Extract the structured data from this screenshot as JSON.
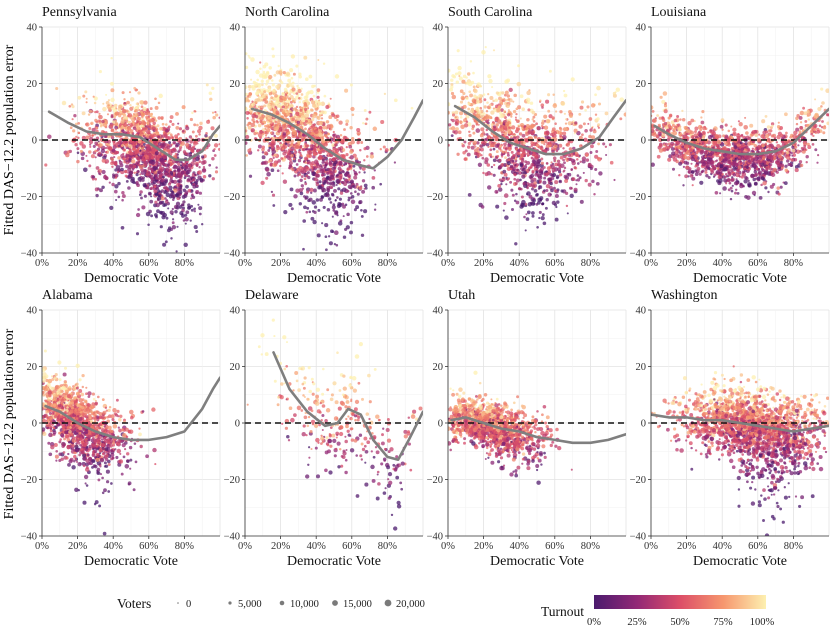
{
  "chart_data": {
    "type": "scatter",
    "y_axis_label": "Fitted DAS−12.2 population error",
    "x_axis_label": "Democratic Vote",
    "xlim": [
      0,
      1
    ],
    "ylim": [
      -40,
      40
    ],
    "x_ticks": [
      "0%",
      "20%",
      "40%",
      "60%",
      "80%"
    ],
    "y_ticks": [
      "40",
      "20",
      "0",
      "−20",
      "−40"
    ],
    "reference_line_y": 0,
    "panels": [
      {
        "title": "Pennsylvania",
        "trend": [
          [
            0.04,
            10
          ],
          [
            0.15,
            6
          ],
          [
            0.25,
            3
          ],
          [
            0.35,
            2
          ],
          [
            0.45,
            2
          ],
          [
            0.55,
            1
          ],
          [
            0.65,
            -3
          ],
          [
            0.75,
            -7
          ],
          [
            0.82,
            -7
          ],
          [
            0.9,
            -4
          ],
          [
            0.96,
            2
          ],
          [
            1.0,
            5
          ]
        ],
        "cloud": {
          "x_center": 0.6,
          "x_spread": 0.18,
          "density": 1600,
          "bias": -2,
          "scatter": 8,
          "skew_neg": 10,
          "skew_at": 0.75,
          "cool": 0.55
        }
      },
      {
        "title": "North Carolina",
        "trend": [
          [
            0.04,
            11
          ],
          [
            0.15,
            9
          ],
          [
            0.25,
            6
          ],
          [
            0.35,
            2
          ],
          [
            0.45,
            -3
          ],
          [
            0.55,
            -7
          ],
          [
            0.65,
            -9
          ],
          [
            0.72,
            -10
          ],
          [
            0.8,
            -6
          ],
          [
            0.88,
            0
          ],
          [
            0.95,
            8
          ],
          [
            1.0,
            14
          ]
        ],
        "cloud": {
          "x_center": 0.3,
          "x_spread": 0.2,
          "density": 1600,
          "bias": 0,
          "scatter": 9,
          "skew_neg": 12,
          "skew_at": 0.5,
          "cool": 0.45
        }
      },
      {
        "title": "South Carolina",
        "trend": [
          [
            0.04,
            12
          ],
          [
            0.15,
            8
          ],
          [
            0.25,
            3
          ],
          [
            0.35,
            -1
          ],
          [
            0.45,
            -3
          ],
          [
            0.55,
            -5
          ],
          [
            0.65,
            -5
          ],
          [
            0.75,
            -3
          ],
          [
            0.85,
            1
          ],
          [
            0.93,
            8
          ],
          [
            1.0,
            14
          ]
        ],
        "cloud": {
          "x_center": 0.4,
          "x_spread": 0.22,
          "density": 1200,
          "bias": 0,
          "scatter": 9,
          "skew_neg": 8,
          "skew_at": 0.5,
          "cool": 0.5
        }
      },
      {
        "title": "Louisiana",
        "trend": [
          [
            0.02,
            5
          ],
          [
            0.1,
            2
          ],
          [
            0.2,
            -1
          ],
          [
            0.3,
            -3
          ],
          [
            0.4,
            -4
          ],
          [
            0.5,
            -5
          ],
          [
            0.6,
            -5
          ],
          [
            0.7,
            -4
          ],
          [
            0.8,
            -1
          ],
          [
            0.9,
            5
          ],
          [
            1.0,
            11
          ]
        ],
        "cloud": {
          "x_center": 0.45,
          "x_spread": 0.28,
          "density": 1500,
          "bias": -1,
          "scatter": 5,
          "skew_neg": 3,
          "skew_at": 0.6,
          "cool": 0.6
        }
      },
      {
        "title": "Alabama",
        "trend": [
          [
            0.02,
            6
          ],
          [
            0.1,
            4
          ],
          [
            0.2,
            0
          ],
          [
            0.3,
            -3
          ],
          [
            0.4,
            -5
          ],
          [
            0.5,
            -6
          ],
          [
            0.6,
            -6
          ],
          [
            0.7,
            -5
          ],
          [
            0.8,
            -3
          ],
          [
            0.9,
            5
          ],
          [
            0.96,
            12
          ],
          [
            1.0,
            16
          ]
        ],
        "cloud": {
          "x_center": 0.2,
          "x_spread": 0.14,
          "density": 1300,
          "bias": 0,
          "scatter": 6,
          "skew_neg": 8,
          "skew_at": 0.4,
          "cool": 0.55
        }
      },
      {
        "title": "Delaware",
        "trend": [
          [
            0.16,
            25
          ],
          [
            0.25,
            12
          ],
          [
            0.35,
            4
          ],
          [
            0.45,
            -1
          ],
          [
            0.52,
            0
          ],
          [
            0.58,
            5
          ],
          [
            0.65,
            3
          ],
          [
            0.72,
            -6
          ],
          [
            0.8,
            -12
          ],
          [
            0.86,
            -13
          ],
          [
            0.92,
            -6
          ],
          [
            1.0,
            4
          ]
        ],
        "cloud": {
          "x_center": 0.55,
          "x_spread": 0.22,
          "density": 320,
          "bias": 0,
          "scatter": 9,
          "skew_neg": 6,
          "skew_at": 0.75,
          "cool": 0.4
        }
      },
      {
        "title": "Utah",
        "trend": [
          [
            0.02,
            1
          ],
          [
            0.1,
            2
          ],
          [
            0.2,
            0
          ],
          [
            0.3,
            -2
          ],
          [
            0.4,
            -3
          ],
          [
            0.5,
            -5
          ],
          [
            0.6,
            -6
          ],
          [
            0.7,
            -7
          ],
          [
            0.8,
            -7
          ],
          [
            0.9,
            -6
          ],
          [
            1.0,
            -4
          ]
        ],
        "cloud": {
          "x_center": 0.25,
          "x_spread": 0.14,
          "density": 1300,
          "bias": 0,
          "scatter": 4,
          "skew_neg": 5,
          "skew_at": 0.45,
          "cool": 0.35
        }
      },
      {
        "title": "Washington",
        "trend": [
          [
            0.0,
            3
          ],
          [
            0.1,
            2
          ],
          [
            0.2,
            2
          ],
          [
            0.3,
            1
          ],
          [
            0.4,
            1
          ],
          [
            0.5,
            0
          ],
          [
            0.6,
            -1
          ],
          [
            0.7,
            -2
          ],
          [
            0.8,
            -3
          ],
          [
            0.9,
            -2
          ],
          [
            1.0,
            -1
          ]
        ],
        "cloud": {
          "x_center": 0.58,
          "x_spread": 0.2,
          "density": 1800,
          "bias": 0,
          "scatter": 6,
          "skew_neg": 12,
          "skew_at": 0.7,
          "cool": 0.45
        }
      }
    ],
    "legend": {
      "size_title": "Voters",
      "size_values": [
        "0",
        "5,000",
        "10,000",
        "15,000",
        "20,000"
      ],
      "color_title": "Turnout",
      "color_ticks": [
        "0%",
        "25%",
        "50%",
        "75%",
        "100%"
      ]
    },
    "colors": {
      "reference_line": "#111111",
      "trend": "#7f7f7f",
      "grid": "#e6e6e6",
      "low": "#4b1b6e",
      "mid": "#e0506a",
      "high": "#fdf0b0"
    }
  }
}
